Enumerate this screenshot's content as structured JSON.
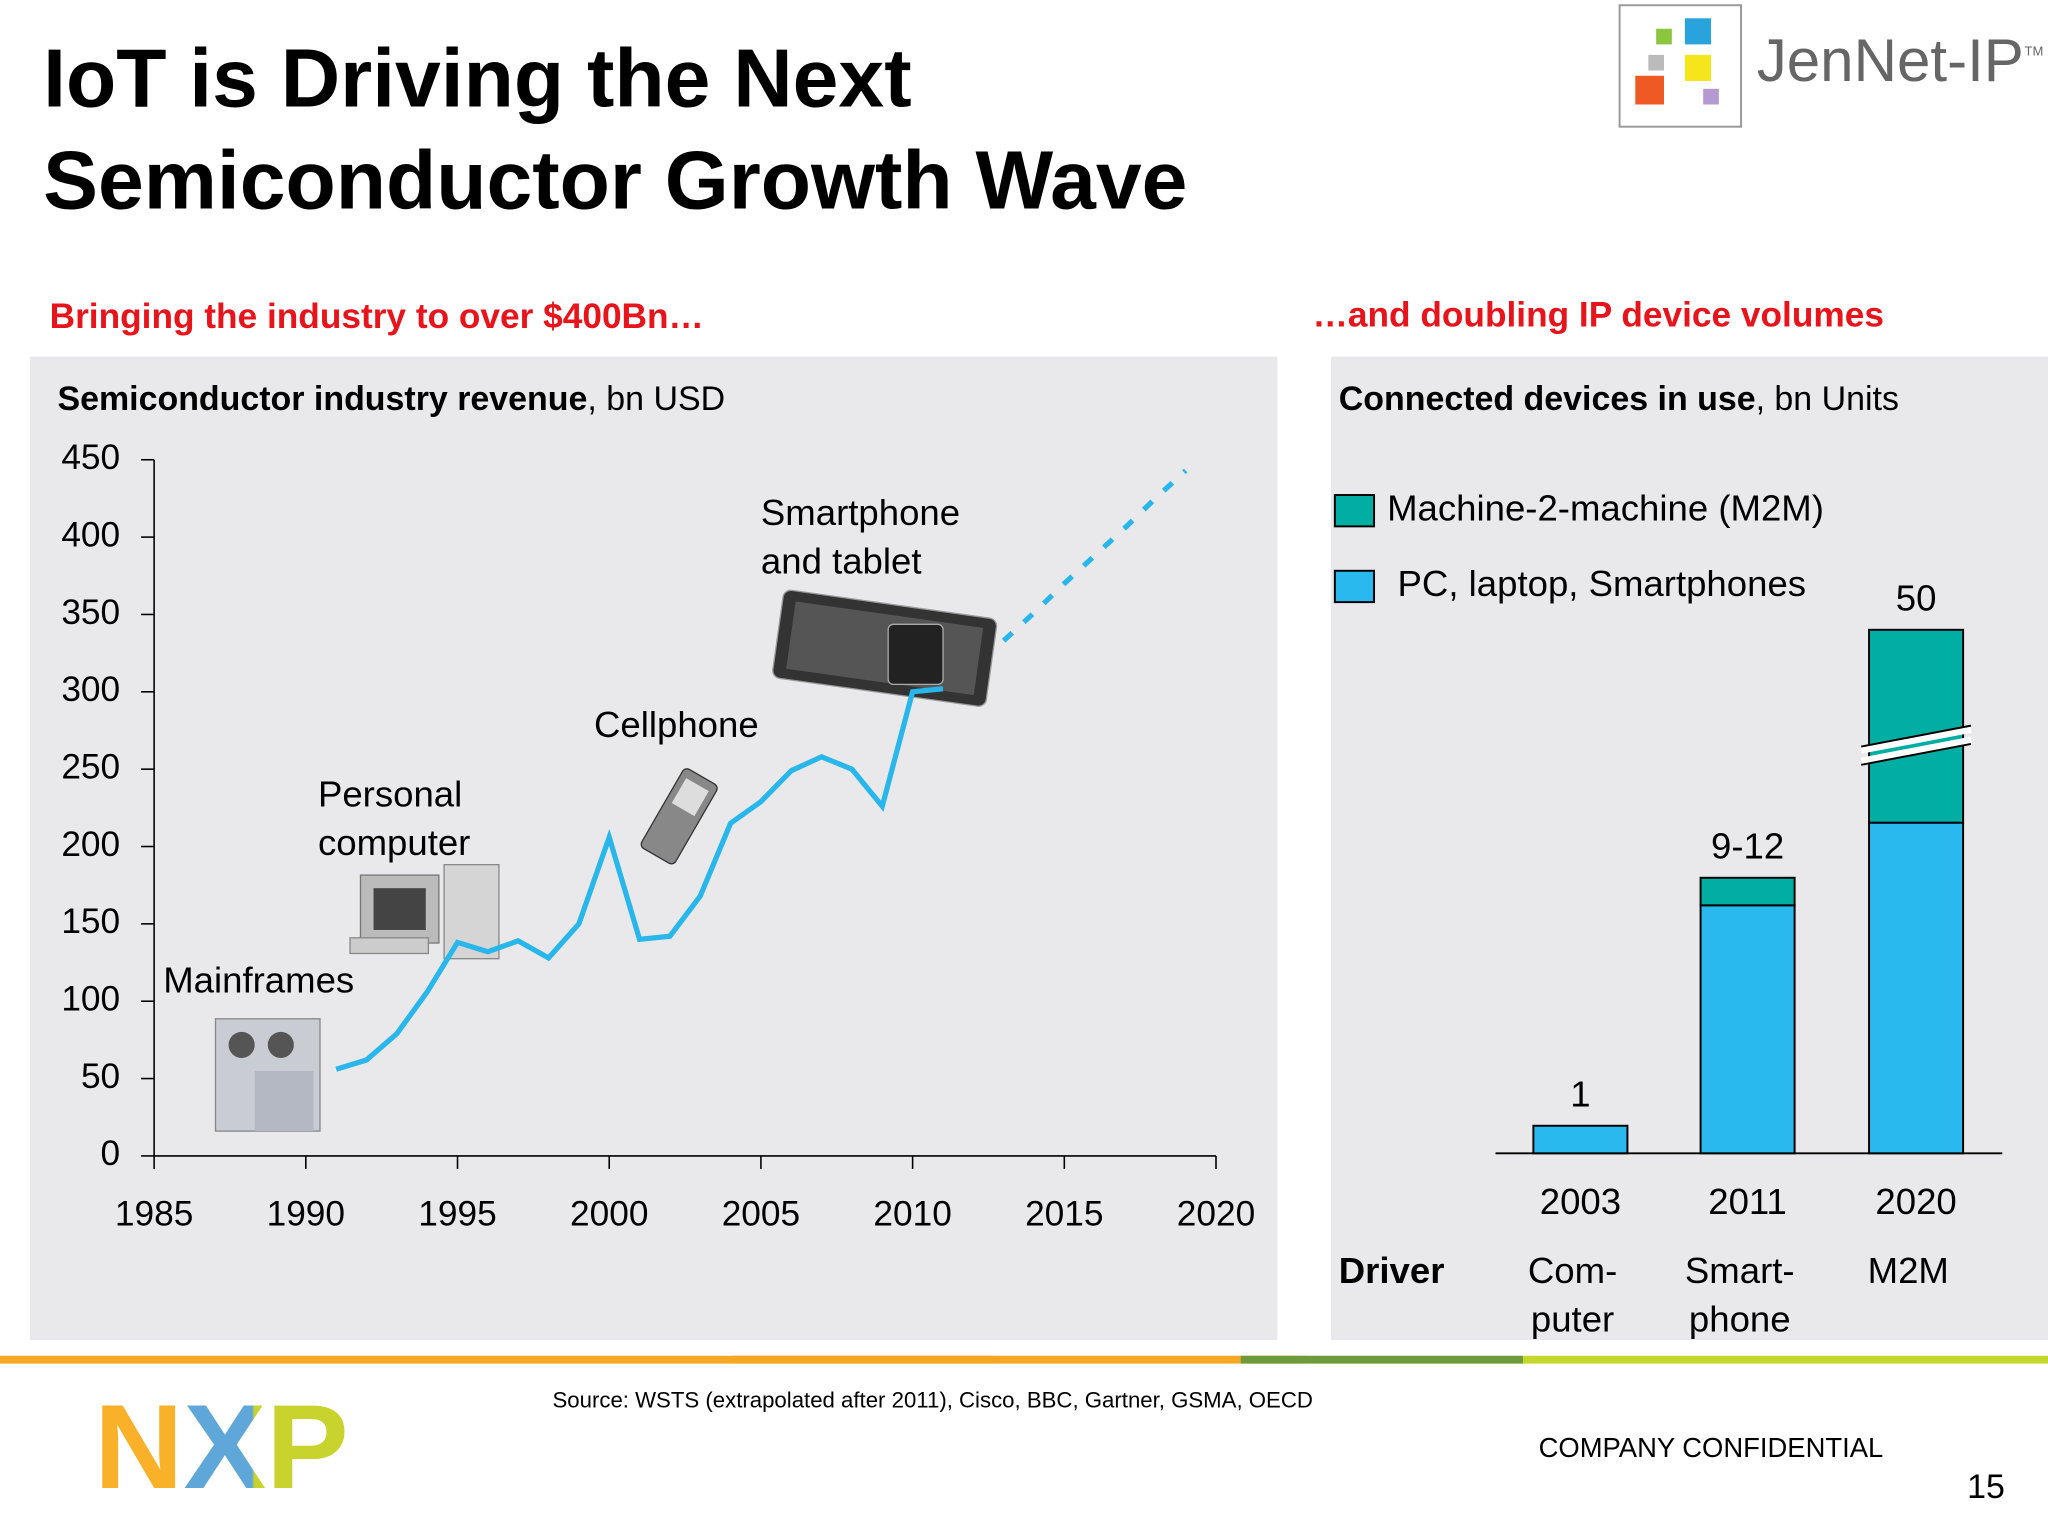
{
  "slide": {
    "title_lines": [
      "IoT is Driving the Next",
      "Semiconductor Growth Wave"
    ],
    "left_heading": "Bringing the industry to over $400Bn…",
    "right_heading": "…and doubling IP device volumes",
    "source": "Source: WSTS (extrapolated after 2011), Cisco, BBC, Gartner, GSMA, OECD",
    "confidential": "COMPANY CONFIDENTIAL",
    "page_number": "15",
    "partner_logo": "JenNet-IP",
    "trademark": "TM",
    "company_logo": "NXP"
  },
  "chart_data": [
    {
      "type": "line",
      "title": "Semiconductor industry revenue",
      "title_unit": ", bn USD",
      "x": [
        1991,
        1992,
        1993,
        1994,
        1995,
        1996,
        1997,
        1998,
        1999,
        2000,
        2001,
        2002,
        2003,
        2004,
        2005,
        2006,
        2007,
        2008,
        2009,
        2010,
        2011,
        2012,
        2013,
        2014,
        2015,
        2016,
        2017,
        2018,
        2019
      ],
      "series": [
        {
          "color": "#29b6ea",
          "dash": false,
          "values": [
            56,
            62,
            79,
            106,
            138,
            132,
            139,
            128,
            150,
            206,
            140,
            142,
            168,
            215,
            229,
            249,
            258,
            250,
            226,
            300,
            302,
            null,
            null,
            null,
            null,
            null,
            null,
            null,
            null
          ]
        },
        {
          "color": "#29b6ea",
          "dash": true,
          "values": [
            null,
            null,
            null,
            null,
            null,
            null,
            null,
            null,
            null,
            null,
            null,
            null,
            null,
            null,
            null,
            null,
            null,
            null,
            null,
            null,
            null,
            null,
            333,
            351,
            370,
            388,
            406,
            425,
            443
          ]
        }
      ],
      "xlim": [
        1985,
        2020
      ],
      "xticks": [
        1985,
        1990,
        1995,
        2000,
        2005,
        2010,
        2015,
        2020
      ],
      "ylim": [
        0,
        450
      ],
      "yticks": [
        0,
        50,
        100,
        150,
        200,
        250,
        300,
        350,
        400,
        450
      ],
      "annotations": [
        {
          "lines": [
            "Mainframes"
          ],
          "x": 1985.3,
          "y": 112
        },
        {
          "lines": [
            "Personal",
            "computer"
          ],
          "x": 1990.4,
          "y": 232
        },
        {
          "lines": [
            "Cellphone"
          ],
          "x": 1999.5,
          "y": 277
        },
        {
          "lines": [
            "Smartphone",
            "and tablet"
          ],
          "x": 2005,
          "y": 414
        }
      ]
    },
    {
      "type": "stacked_bar",
      "title": "Connected devices in use",
      "title_unit": ", bn Units",
      "categories": [
        "2003",
        "2011",
        "2020"
      ],
      "series": [
        {
          "name": "PC, laptop, Smartphones",
          "color": "#29b9ef",
          "values": [
            1,
            9,
            12
          ]
        },
        {
          "name": "Machine-2-machine (M2M)",
          "color": "#00aea3",
          "values": [
            0,
            1,
            38
          ]
        }
      ],
      "value_labels": [
        "1",
        "9-12",
        "50"
      ],
      "ylim": [
        0,
        52
      ],
      "axis_break": [
        15,
        46
      ],
      "driver_label": "Driver",
      "drivers": [
        [
          "Com-",
          "puter"
        ],
        [
          "Smart-",
          "phone"
        ],
        [
          "M2M"
        ]
      ]
    }
  ]
}
